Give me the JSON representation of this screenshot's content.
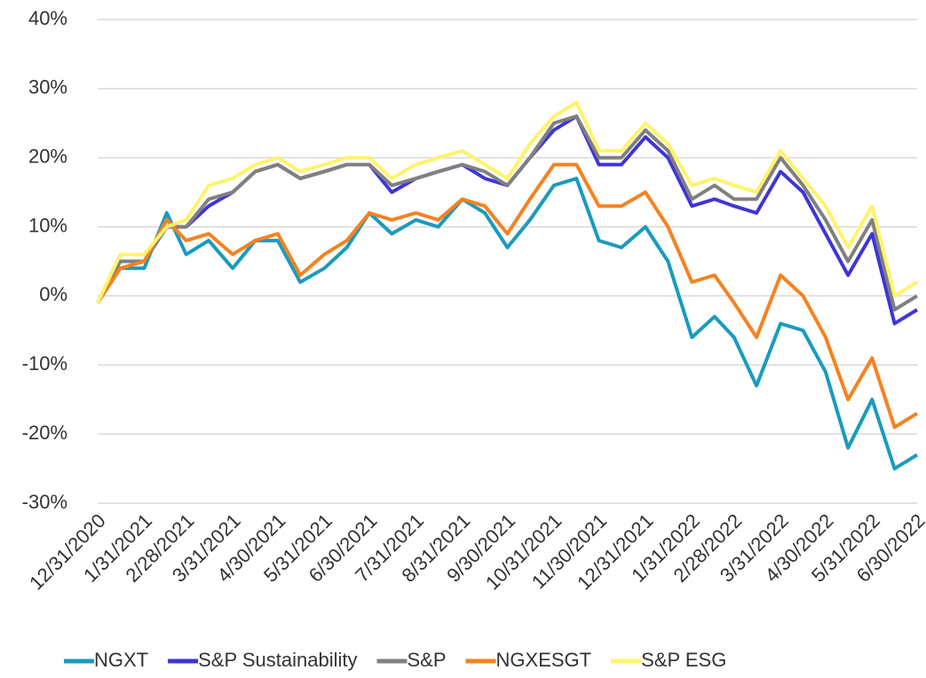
{
  "chart_data": {
    "type": "line",
    "x": [
      "12/31/2020",
      "1/15/2021",
      "1/31/2021",
      "2/15/2021",
      "2/28/2021",
      "3/15/2021",
      "3/31/2021",
      "4/15/2021",
      "4/30/2021",
      "5/15/2021",
      "5/31/2021",
      "6/15/2021",
      "6/30/2021",
      "7/15/2021",
      "7/31/2021",
      "8/15/2021",
      "8/31/2021",
      "9/15/2021",
      "9/30/2021",
      "10/15/2021",
      "10/31/2021",
      "11/15/2021",
      "11/30/2021",
      "12/15/2021",
      "12/31/2021",
      "1/15/2022",
      "1/31/2022",
      "2/15/2022",
      "2/28/2022",
      "3/15/2022",
      "3/31/2022",
      "4/15/2022",
      "4/30/2022",
      "5/15/2022",
      "5/31/2022",
      "6/15/2022",
      "6/30/2022"
    ],
    "xlim": [
      "12/31/2020",
      "6/30/2022"
    ],
    "xticks": [
      "12/31/2020",
      "1/31/2021",
      "2/28/2021",
      "3/31/2021",
      "4/30/2021",
      "5/31/2021",
      "6/30/2021",
      "7/31/2021",
      "8/31/2021",
      "9/30/2021",
      "10/31/2021",
      "11/30/2021",
      "12/31/2021",
      "1/31/2022",
      "2/28/2022",
      "3/31/2022",
      "4/30/2022",
      "5/31/2022",
      "6/30/2022"
    ],
    "ylim": [
      -30,
      40
    ],
    "yticks": [
      {
        "value": -30,
        "label": "-30%"
      },
      {
        "value": -20,
        "label": "-20%"
      },
      {
        "value": -10,
        "label": "-10%"
      },
      {
        "value": 0,
        "label": "0%"
      },
      {
        "value": 10,
        "label": "10%"
      },
      {
        "value": 20,
        "label": "20%"
      },
      {
        "value": 30,
        "label": "30%"
      },
      {
        "value": 40,
        "label": "40%"
      }
    ],
    "grid": true,
    "legend": "bottom",
    "series": [
      {
        "name": "NGXT",
        "color": "#1a9bbd",
        "values": [
          -1,
          4,
          4,
          12,
          6,
          8,
          4,
          8,
          8,
          2,
          4,
          7,
          12,
          9,
          11,
          10,
          14,
          12,
          7,
          11,
          16,
          17,
          8,
          7,
          10,
          5,
          -6,
          -3,
          -6,
          -13,
          -4,
          -5,
          -11,
          -22,
          -15,
          -25,
          -23
        ]
      },
      {
        "name": "S&P Sustainability",
        "color": "#3f35d6",
        "values": [
          -1,
          5,
          5,
          10,
          10,
          13,
          15,
          18,
          19,
          17,
          18,
          19,
          19,
          15,
          17,
          18,
          19,
          17,
          16,
          20,
          24,
          26,
          19,
          19,
          23,
          20,
          13,
          14,
          13,
          12,
          18,
          15,
          9,
          3,
          9,
          -4,
          -2
        ]
      },
      {
        "name": "S&P",
        "color": "#808080",
        "values": [
          -1,
          5,
          5,
          10,
          10,
          14,
          15,
          18,
          19,
          17,
          18,
          19,
          19,
          16,
          17,
          18,
          19,
          18,
          16,
          20,
          25,
          26,
          20,
          20,
          24,
          21,
          14,
          16,
          14,
          14,
          20,
          16,
          11,
          5,
          11,
          -2,
          0
        ]
      },
      {
        "name": "NGXESGT",
        "color": "#f58220",
        "values": [
          -1,
          4,
          5,
          11,
          8,
          9,
          6,
          8,
          9,
          3,
          6,
          8,
          12,
          11,
          12,
          11,
          14,
          13,
          9,
          14,
          19,
          19,
          13,
          13,
          15,
          10,
          2,
          3,
          -1,
          -6,
          3,
          0,
          -6,
          -15,
          -9,
          -19,
          -17
        ]
      },
      {
        "name": "S&P ESG",
        "color": "#fff36b",
        "values": [
          -1,
          6,
          6,
          10,
          11,
          16,
          17,
          19,
          20,
          18,
          19,
          20,
          20,
          17,
          19,
          20,
          21,
          19,
          17,
          22,
          26,
          28,
          21,
          21,
          25,
          22,
          16,
          17,
          16,
          15,
          21,
          17,
          13,
          7,
          13,
          0,
          2
        ]
      }
    ]
  }
}
